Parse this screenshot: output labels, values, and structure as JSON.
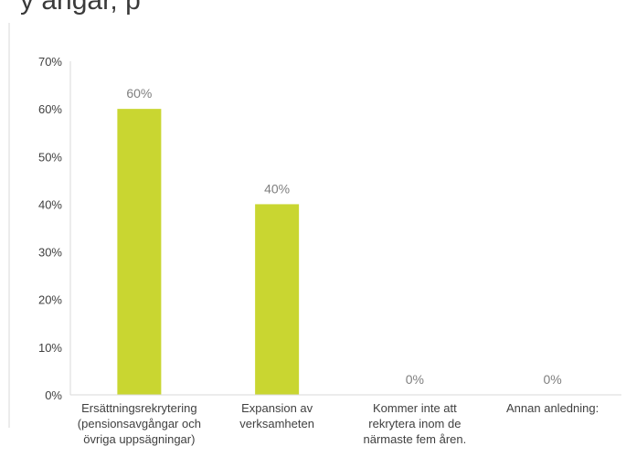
{
  "header": {
    "cut_title": "y ängar, p"
  },
  "chart_data": {
    "type": "bar",
    "categories": [
      [
        "Ersättningsrekrytering",
        "(pensionsavgångar och",
        "övriga uppsägningar)"
      ],
      [
        "Expansion av",
        "verksamheten"
      ],
      [
        "Kommer inte att",
        "rekrytera inom de",
        "närmaste fem åren."
      ],
      [
        "Annan anledning:"
      ]
    ],
    "values": [
      60,
      40,
      0,
      0
    ],
    "data_labels": [
      "60%",
      "40%",
      "0%",
      "0%"
    ],
    "yticks": [
      "0%",
      "10%",
      "20%",
      "30%",
      "40%",
      "50%",
      "60%",
      "70%"
    ],
    "ylim": [
      0,
      70
    ],
    "grid": false,
    "bar_color": "#c9d631",
    "axis_color": "#d9d9d9",
    "label_color": "#7f7f7f"
  }
}
